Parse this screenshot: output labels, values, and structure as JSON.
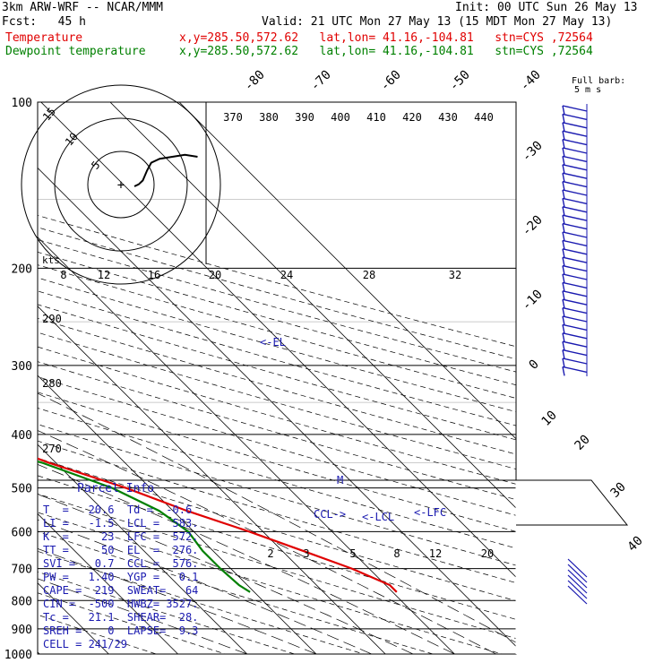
{
  "header": {
    "model": "3km ARW-WRF -- NCAR/MMM",
    "init": "Init: 00 UTC Sun 26 May 13",
    "fcst": "Fcst:   45 h",
    "valid": "Valid: 21 UTC Mon 27 May 13 (15 MDT Mon 27 May 13)",
    "temp_label": "Temperature",
    "dew_label": "Dewpoint temperature",
    "location": "x,y=285.50,572.62   lat,lon= 41.16,-104.81   stn=CYS ,72564",
    "barb_label_1": "Full barb:",
    "barb_label_2": "5 m s"
  },
  "colors": {
    "temperature": "#e00000",
    "dewpoint": "#008000",
    "annotation": "#1a1ab0",
    "grid": "#000000"
  },
  "chart_data": {
    "type": "line",
    "title": "",
    "ylabel": "",
    "y_scale": "log pressure (hPa, inverted)",
    "pressure_ticks": [
      "100",
      "200",
      "300",
      "400",
      "500",
      "600",
      "700",
      "800",
      "900",
      "1000"
    ],
    "pressure_values": [
      100,
      200,
      300,
      400,
      500,
      600,
      700,
      800,
      900,
      1000
    ],
    "isotherm_labels": [
      "-80",
      "-70",
      "-60",
      "-50",
      "-40",
      "-30",
      "-20",
      "-10",
      "0",
      "10",
      "20",
      "30",
      "40"
    ],
    "isotherm_values": [
      -80,
      -70,
      -60,
      -50,
      -40,
      -30,
      -20,
      -10,
      0,
      10,
      20,
      30,
      40
    ],
    "theta_labels": [
      "370",
      "380",
      "390",
      "400",
      "410",
      "420",
      "430",
      "440"
    ],
    "theta_values": [
      370,
      380,
      390,
      400,
      410,
      420,
      430,
      440
    ],
    "mixing_ratio_labels_upper": [
      "8",
      "12",
      "16",
      "20",
      "24",
      "28",
      "32"
    ],
    "mixing_ratio_labels_lower": [
      "2",
      "3",
      "5",
      "8",
      "12",
      "20"
    ],
    "theta_e_labels": [
      "290",
      "280",
      "270"
    ],
    "series": [
      {
        "name": "Temperature",
        "color": "#e00000",
        "points": [
          [
            100,
            -59.5
          ],
          [
            120,
            -58
          ],
          [
            150,
            -58
          ],
          [
            180,
            -57
          ],
          [
            200,
            -55.5
          ],
          [
            215,
            -51
          ],
          [
            250,
            -46
          ],
          [
            300,
            -37
          ],
          [
            350,
            -27
          ],
          [
            400,
            -18
          ],
          [
            450,
            -11
          ],
          [
            500,
            -3.5
          ],
          [
            550,
            2
          ],
          [
            600,
            8
          ],
          [
            650,
            13
          ],
          [
            700,
            17.5
          ],
          [
            750,
            20.6
          ],
          [
            772,
            20.6
          ]
        ]
      },
      {
        "name": "Dewpoint temperature",
        "color": "#008000",
        "points": [
          [
            100,
            -82
          ],
          [
            150,
            -83
          ],
          [
            200,
            -76
          ],
          [
            250,
            -72
          ],
          [
            270,
            -69
          ],
          [
            300,
            -54
          ],
          [
            350,
            -38
          ],
          [
            400,
            -23
          ],
          [
            450,
            -12
          ],
          [
            500,
            -5.5
          ],
          [
            550,
            -2
          ],
          [
            600,
            -0.8
          ],
          [
            650,
            -1.5
          ],
          [
            700,
            -1.5
          ],
          [
            750,
            -1.2
          ],
          [
            772,
            -0.6
          ]
        ]
      }
    ],
    "annotations": {
      "el": "<-EL",
      "lcl": "<-LCL",
      "lfc": "<-LFC",
      "ccl": "CCL->",
      "mark": "M"
    },
    "hodograph": {
      "ring_labels": [
        "5",
        "10",
        "15"
      ],
      "kts_label": "kts",
      "trace": [
        [
          0,
          0
        ],
        [
          1,
          -0.5
        ],
        [
          2,
          -1.5
        ],
        [
          3,
          -4
        ],
        [
          4,
          -6
        ],
        [
          6,
          -7
        ],
        [
          9,
          -7.5
        ],
        [
          12,
          -8
        ],
        [
          15,
          -7.5
        ]
      ]
    },
    "wind_barbs_upper": 32,
    "wind_barbs_lower": 6
  },
  "parcel_info": {
    "title": "Parcel Info",
    "rows": [
      "T  =   20.6  Td =  -0.6",
      "LI =   -1.5  LCL =  583.",
      "K  =     23  LFC =  572.",
      "TT =     50  EL  =  276.",
      "SVI =   0.7  CCL =  576.",
      "PW =   1.40  YGP =   0.1",
      "CAPE =  219  SWEAT=   64",
      "CIN =  -500  HWBZ= 3527.",
      "Tc =   21.1  SHEAR=  28.",
      "SREH =    0  LAPSE=  9.3",
      "CELL = 241/29"
    ]
  }
}
